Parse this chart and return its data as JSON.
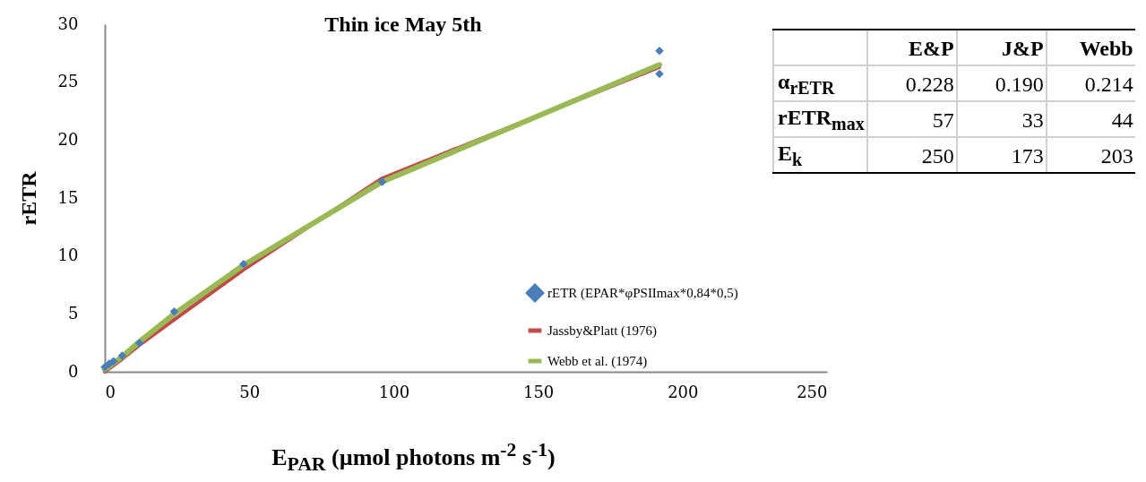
{
  "chart_data": [
    {
      "type": "line",
      "title": "Thin ice May 5th",
      "xlabel": "E$_{PAR}$ (µmol photons m$^{-2}$ s$^{-1}$)",
      "ylabel": "rETR",
      "xlim": [
        0,
        250
      ],
      "xticks": [
        0,
        50,
        100,
        150,
        200,
        250
      ],
      "ylim": [
        0,
        30
      ],
      "yticks": [
        0,
        5,
        10,
        15,
        20,
        25,
        30
      ],
      "grid": false,
      "legend": "right",
      "series": [
        {
          "name": "rETR (EPAR*φPSIImax*0,84*0,5)",
          "type": "scatter",
          "marker": "diamond",
          "color": "#4a7ebb",
          "x": [
            0,
            1.5,
            3,
            6,
            12,
            24,
            48,
            96,
            192,
            192
          ],
          "values": [
            0.4,
            0.7,
            0.9,
            1.4,
            2.5,
            5.2,
            9.3,
            16.4,
            27.7,
            25.7
          ]
        },
        {
          "name": "Jassby&Platt (1976)",
          "type": "line",
          "color": "#be4b48",
          "x": [
            0,
            6,
            12,
            24,
            48,
            96,
            192
          ],
          "values": [
            0,
            1.1,
            2.3,
            4.5,
            8.8,
            16.7,
            26.3
          ]
        },
        {
          "name": "Webb et al. (1974)",
          "type": "line",
          "color": "#98b954",
          "x": [
            0,
            6,
            12,
            24,
            48,
            96,
            192
          ],
          "values": [
            0.2,
            1.3,
            2.6,
            5.0,
            9.2,
            16.4,
            26.5
          ]
        }
      ]
    },
    {
      "type": "other",
      "categories": [
        "E&P",
        "J&P",
        "Webb"
      ],
      "y_categories": [
        "α$_{rETR}$",
        "rETR$_{max}$",
        "E$_{k}$"
      ],
      "cell_labels": [
        [
          "0.228",
          "0.190",
          "0.214"
        ],
        [
          "57",
          "33",
          "44"
        ],
        [
          "250",
          "173",
          "203"
        ]
      ]
    }
  ]
}
